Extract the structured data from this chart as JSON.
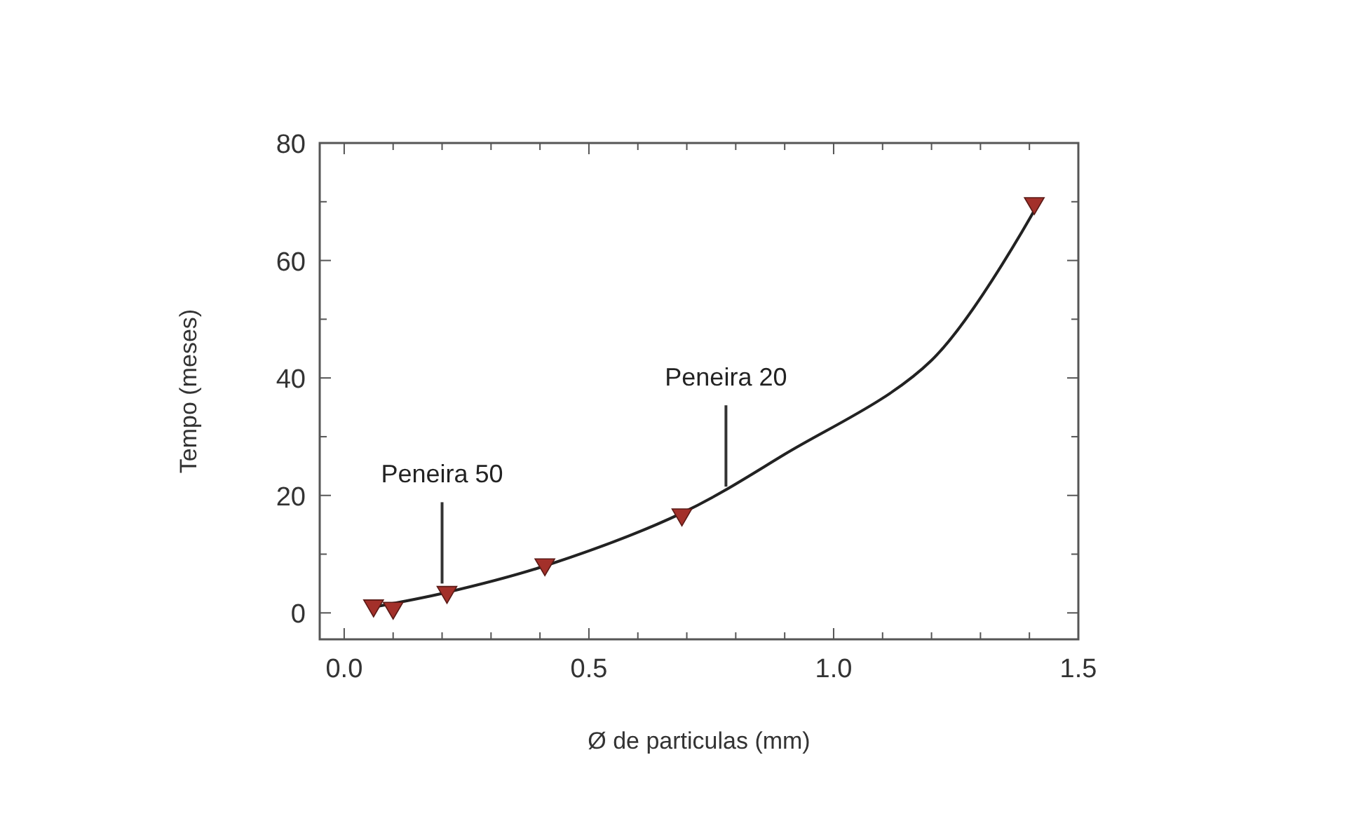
{
  "chart_data": {
    "type": "scatter",
    "xlabel": "Ø de particulas (mm)",
    "ylabel": "Tempo (meses)",
    "xlim": [
      -0.05,
      1.5
    ],
    "ylim": [
      -4.5,
      80
    ],
    "xticks": [
      {
        "value": 0,
        "label": "0.0"
      },
      {
        "value": 0.1,
        "label": null
      },
      {
        "value": 0.2,
        "label": null
      },
      {
        "value": 0.3,
        "label": null
      },
      {
        "value": 0.4,
        "label": null
      },
      {
        "value": 0.5,
        "label": "0.5"
      },
      {
        "value": 0.6,
        "label": null
      },
      {
        "value": 0.7,
        "label": null
      },
      {
        "value": 0.8,
        "label": null
      },
      {
        "value": 0.9,
        "label": null
      },
      {
        "value": 1,
        "label": "1.0"
      },
      {
        "value": 1.1,
        "label": null
      },
      {
        "value": 1.2,
        "label": null
      },
      {
        "value": 1.3,
        "label": null
      },
      {
        "value": 1.4,
        "label": null
      },
      {
        "value": 1.5,
        "label": "1.5"
      }
    ],
    "yticks": [
      0,
      {
        "value": 10,
        "label": null
      },
      20,
      {
        "value": 30,
        "label": null
      },
      40,
      {
        "value": 50,
        "label": null
      },
      60,
      {
        "value": 70,
        "label": null
      },
      80
    ],
    "grid": false,
    "series": [
      {
        "type": "line",
        "color": "#222222",
        "line_style": "solid",
        "x": [
          0.06,
          0.21,
          0.41,
          0.69,
          0.9,
          1.2,
          1.42
        ],
        "values": [
          1,
          3.5,
          8,
          17,
          27,
          43,
          70
        ]
      },
      {
        "color": "#a3302a",
        "marker": "triangle",
        "x": [
          0.06,
          0.1,
          0.21,
          0.41,
          0.69,
          1.41
        ],
        "values": [
          1,
          0.6,
          3.3,
          8,
          16.5,
          69.5
        ]
      }
    ],
    "annotations": [
      {
        "text": "Peneira 50",
        "x": 0.2,
        "y": 5
      },
      {
        "text": "Peneira 20",
        "x": 0.78,
        "y": 21.5
      }
    ]
  }
}
